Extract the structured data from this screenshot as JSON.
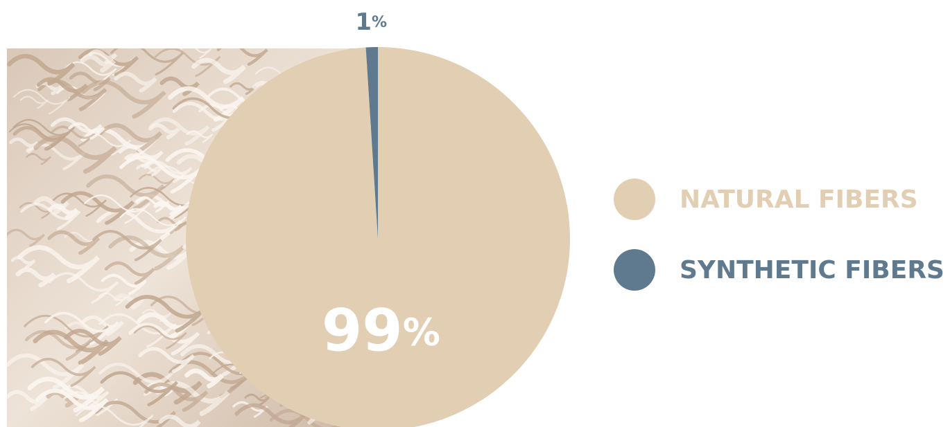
{
  "chart_data": {
    "type": "pie",
    "categories": [
      "NATURAL FIBERS",
      "SYNTHETIC FIBERS"
    ],
    "values": [
      99,
      1
    ],
    "value_labels": [
      "99%",
      "1%"
    ],
    "colors": [
      "#e2cfb3",
      "#5f7a8e"
    ],
    "legend": "right"
  }
}
